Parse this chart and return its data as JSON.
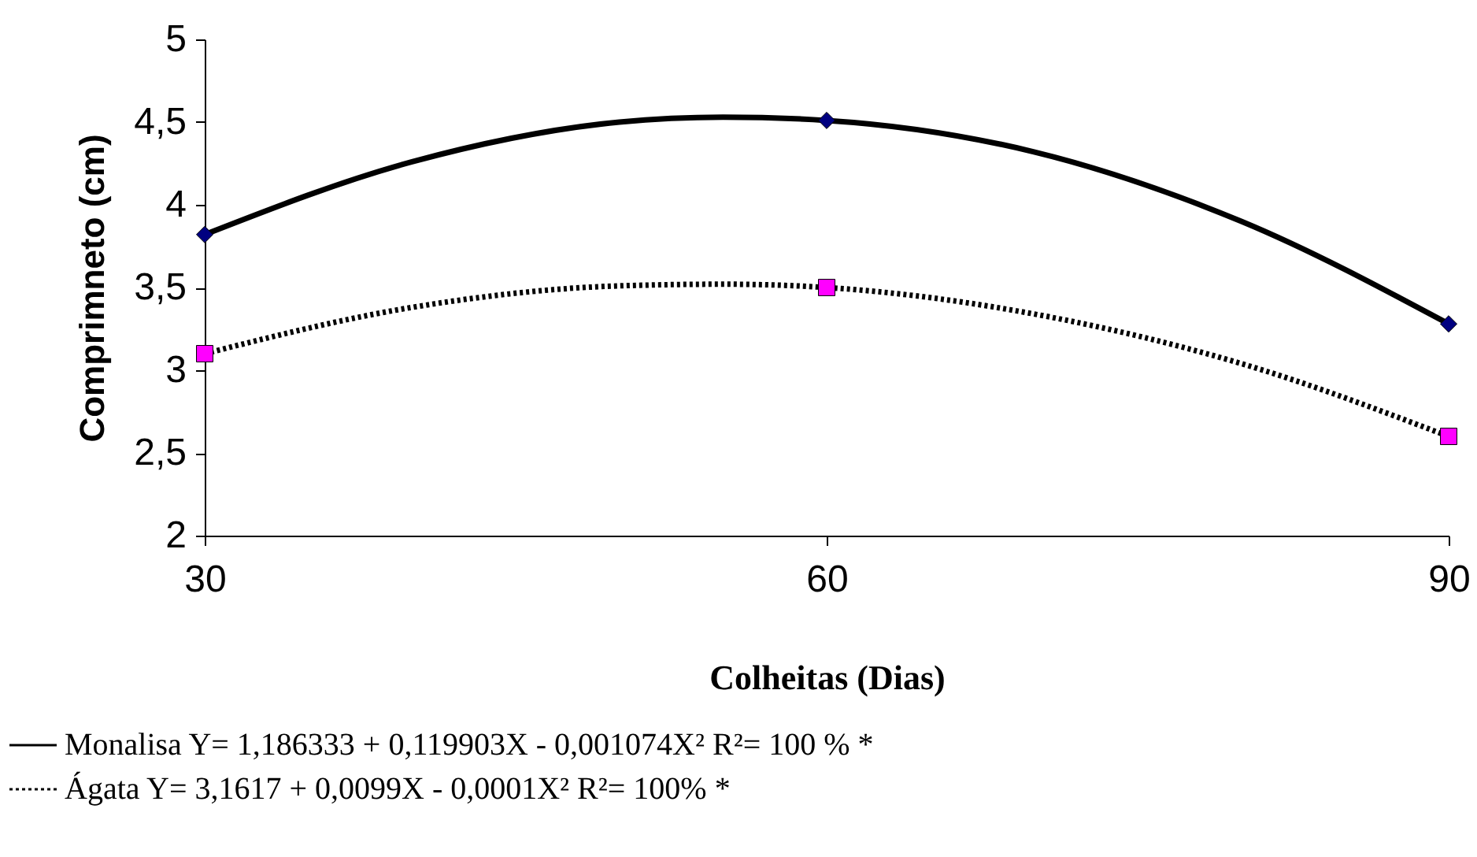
{
  "chart_data": {
    "type": "line",
    "xlabel": "Colheitas (Dias)",
    "ylabel": "Comprimneto (cm)",
    "x": [
      30,
      60,
      90
    ],
    "xlim": [
      30,
      90
    ],
    "xticks": [
      30,
      60,
      90
    ],
    "ylim": [
      2,
      5
    ],
    "yticks": [
      2,
      {
        "value": 2.5,
        "label": "2,5"
      },
      3,
      {
        "value": 3.5,
        "label": "3,5"
      },
      4,
      {
        "value": 4.5,
        "label": "4,5"
      },
      5
    ],
    "grid": false,
    "legend": "bottom",
    "series": [
      {
        "type": "scatter",
        "color": "#000080",
        "marker": "diamond",
        "values": [
          3.82,
          4.51,
          3.28
        ]
      },
      {
        "type": "scatter",
        "color": "#ff00ff",
        "marker": "square",
        "values": [
          3.1,
          3.5,
          2.6
        ]
      },
      {
        "name": "Monalisa  Y= 1,186333 + 0,119903X - 0,001074X²    R²= 100 %  *",
        "color": "#000000",
        "line_style": "solid",
        "marker": "none",
        "x": [
          30,
          40,
          50,
          55,
          60,
          70,
          80,
          90
        ],
        "values": [
          3.82,
          4.26,
          4.5,
          4.53,
          4.51,
          4.32,
          3.9,
          3.28
        ]
      },
      {
        "name": "Ágata         Y= 3,1617 + 0,0099X - 0,0001X²    R²= 100% *",
        "color": "#000000",
        "line_style": "dotted",
        "marker": "none",
        "x": [
          30,
          40,
          50,
          55,
          60,
          70,
          80,
          90
        ],
        "values": [
          3.1,
          3.38,
          3.51,
          3.52,
          3.5,
          3.34,
          3.04,
          2.6
        ]
      }
    ]
  }
}
